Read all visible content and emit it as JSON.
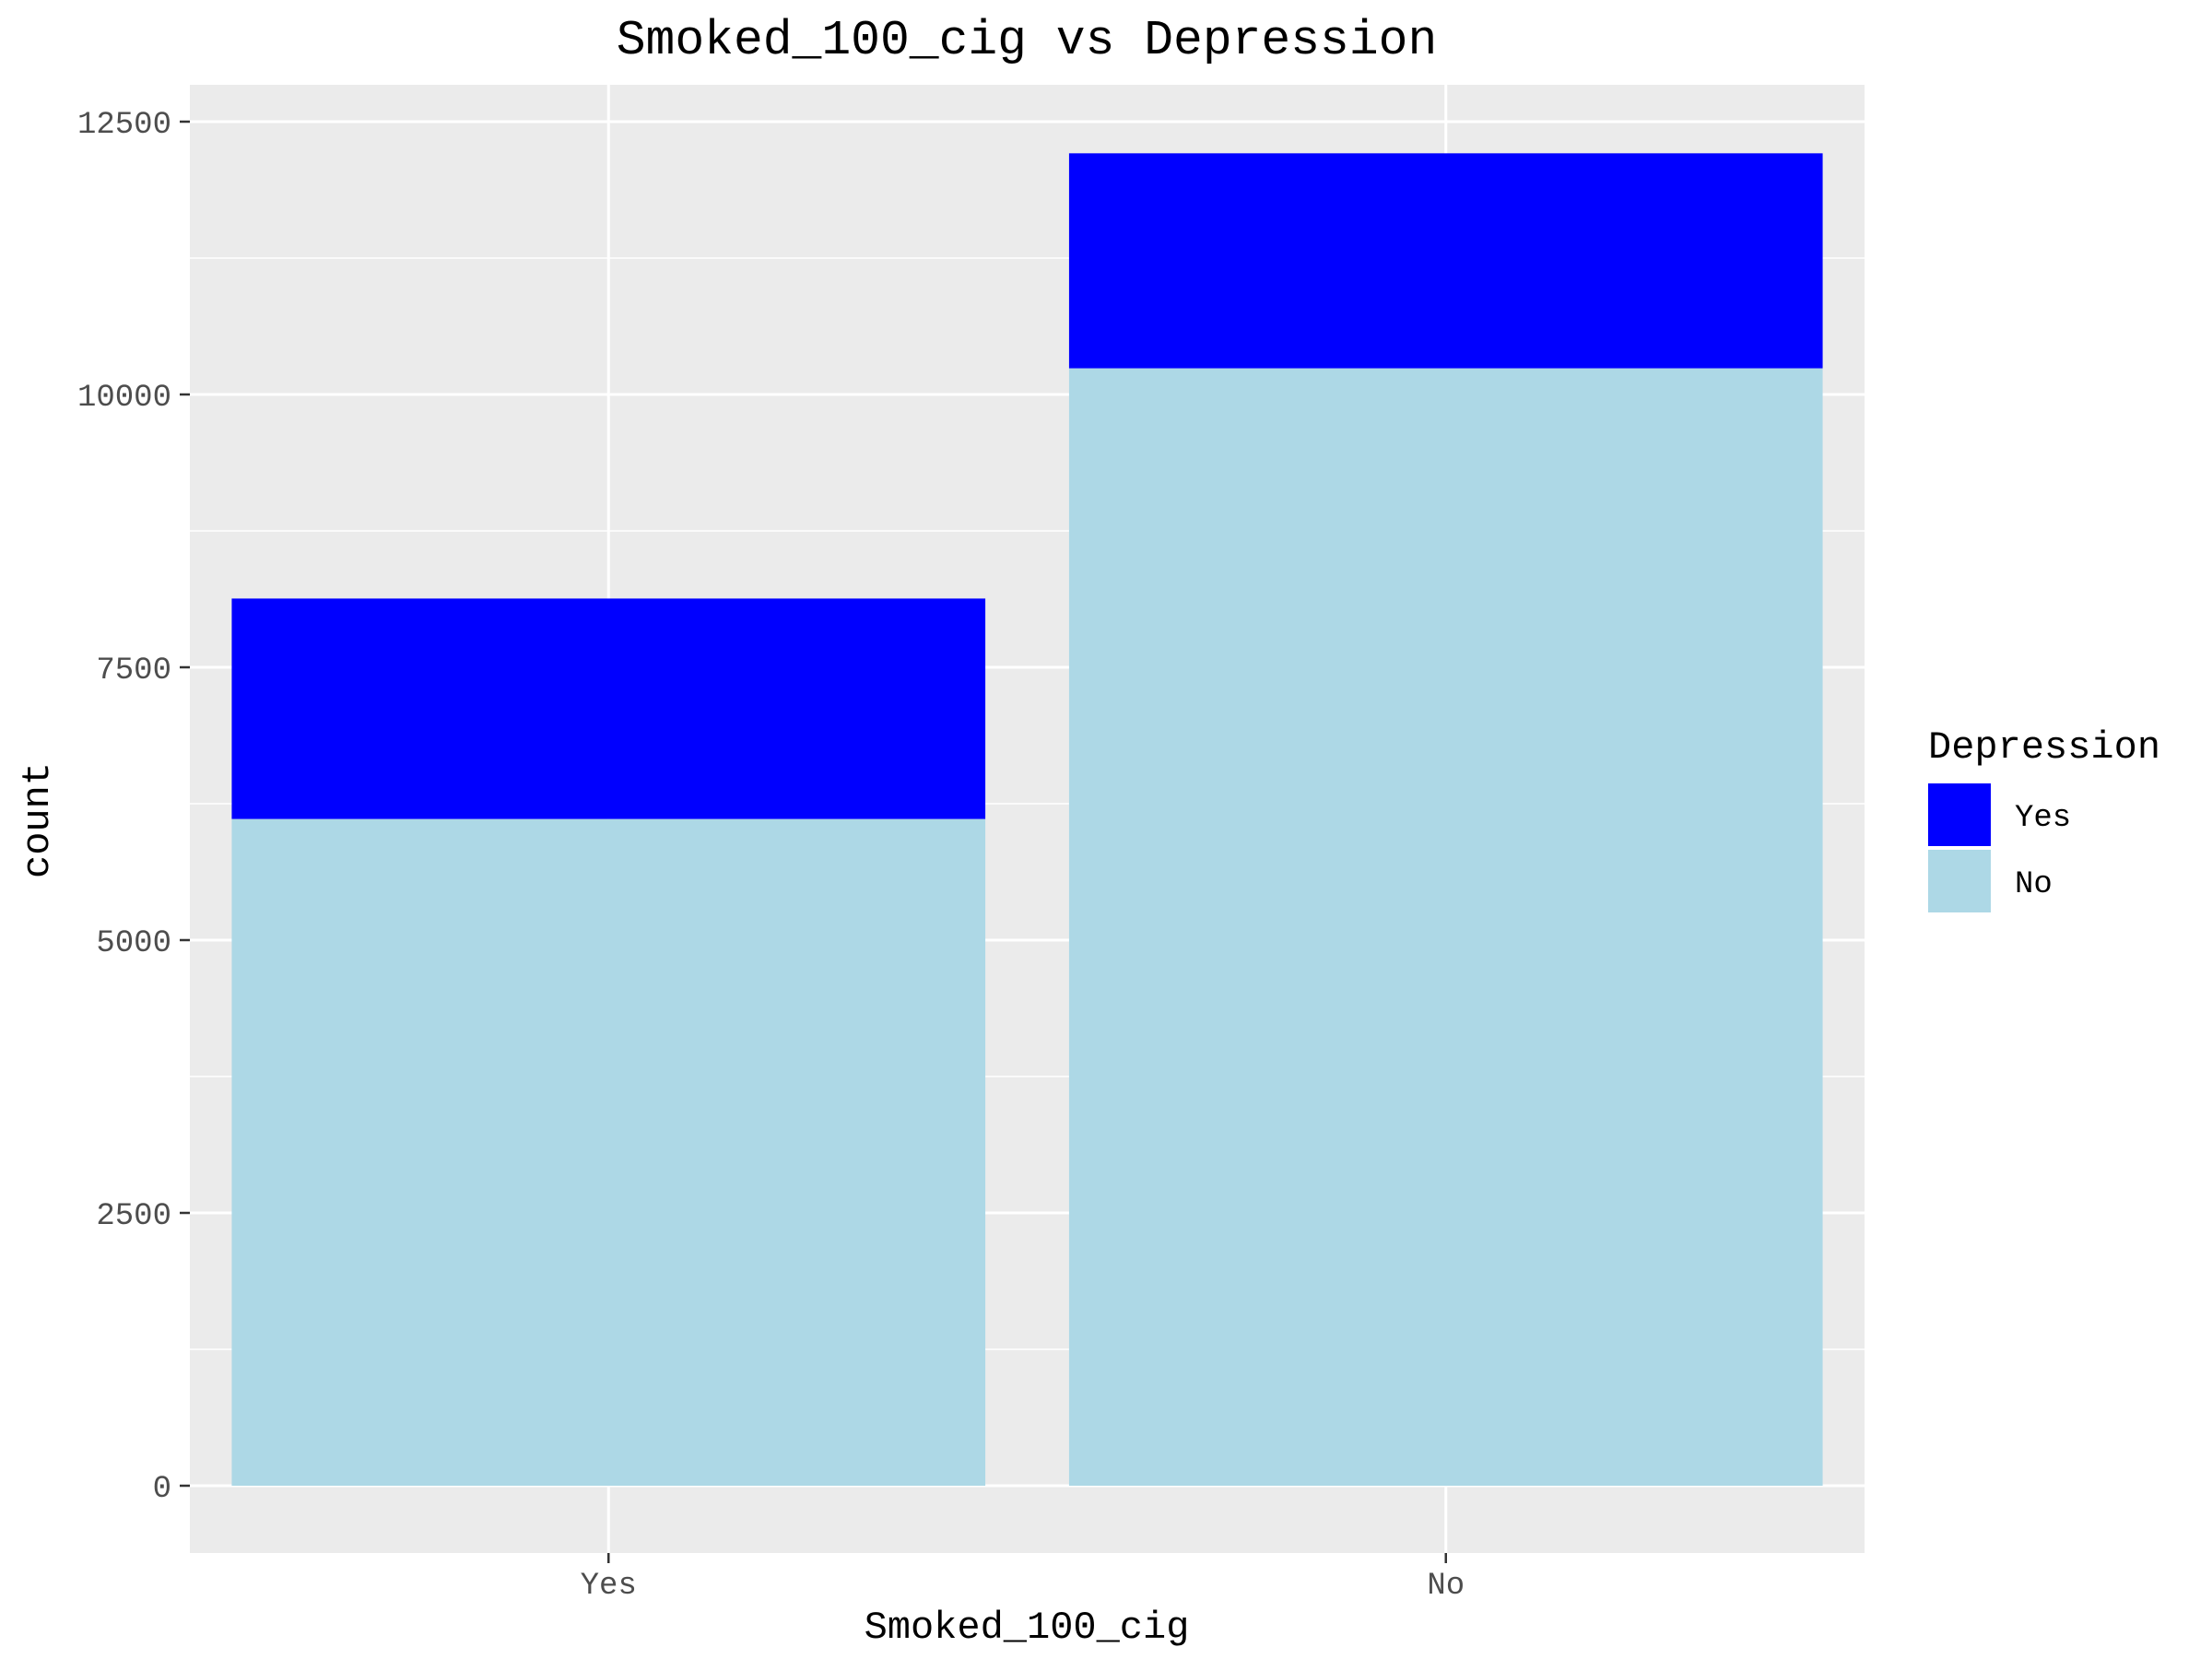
{
  "chart_data": {
    "type": "bar",
    "stacked": true,
    "title": "Smoked_100_cig vs Depression",
    "xlabel": "Smoked_100_cig",
    "ylabel": "count",
    "categories": [
      "Yes",
      "No"
    ],
    "series": [
      {
        "name": "No",
        "color": "#add8e6",
        "values": [
          6110,
          10240
        ]
      },
      {
        "name": "Yes",
        "color": "#0000ff",
        "values": [
          2020,
          1970
        ]
      }
    ],
    "ylim": [
      0,
      13000
    ],
    "yticks": [
      0,
      2500,
      5000,
      7500,
      10000,
      12500
    ],
    "grid": true,
    "legend": {
      "title": "Depression",
      "position": "right",
      "entries": [
        {
          "label": "Yes",
          "color": "#0000ff"
        },
        {
          "label": "No",
          "color": "#add8e6"
        }
      ]
    }
  }
}
